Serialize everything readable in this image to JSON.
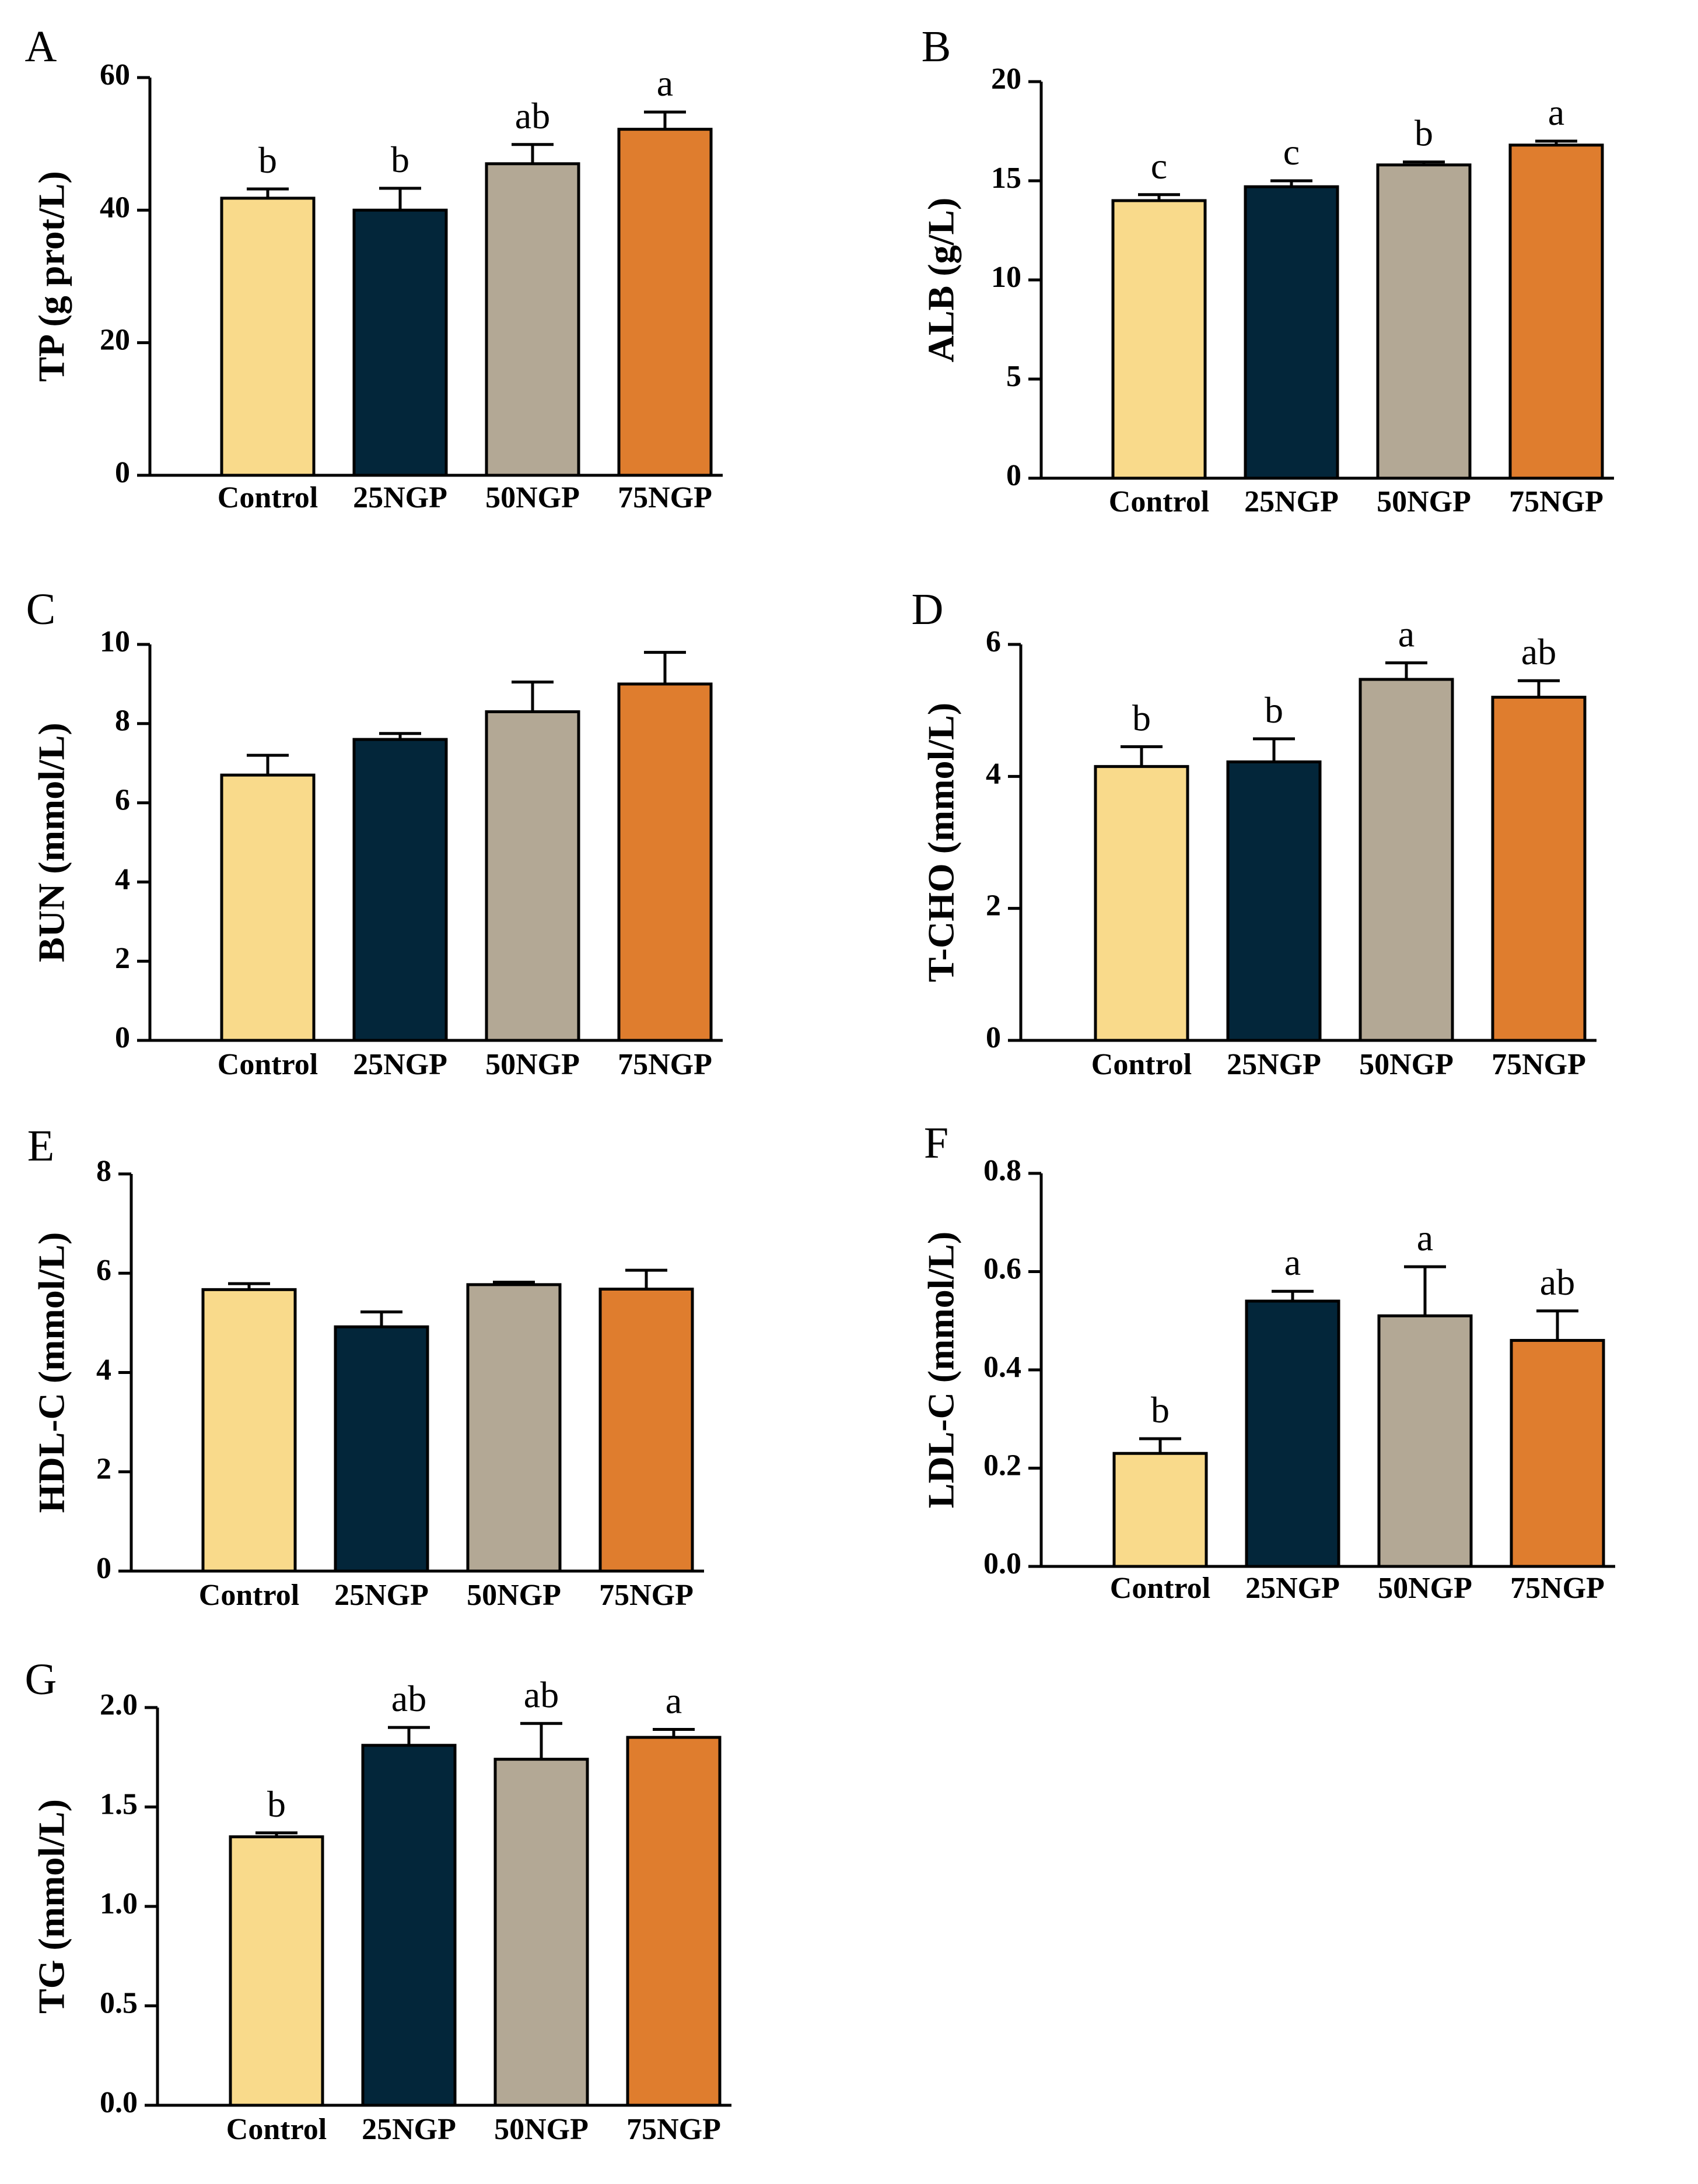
{
  "colors": {
    "Control": "#f9da8b",
    "25NGP": "#03263a",
    "50NGP": "#b3a895",
    "75NGP": "#df7d2e",
    "axis": "#000000"
  },
  "chart_data": [
    {
      "type": "bar",
      "panel": "A",
      "categories": [
        "Control",
        "25NGP",
        "50NGP",
        "75NGP"
      ],
      "values": [
        41.8,
        40.0,
        47.0,
        52.2
      ],
      "errors": [
        1.4,
        3.3,
        2.9,
        2.6
      ],
      "significance": [
        "b",
        "b",
        "ab",
        "a"
      ],
      "ylabel": "TP (g prot/L)",
      "ylim": [
        0,
        60
      ],
      "yticks": [
        0,
        20,
        40,
        60
      ],
      "ytick_labels": [
        "0",
        "20",
        "40",
        "60"
      ]
    },
    {
      "type": "bar",
      "panel": "B",
      "categories": [
        "Control",
        "25NGP",
        "50NGP",
        "75NGP"
      ],
      "values": [
        14.0,
        14.7,
        15.8,
        16.8
      ],
      "errors": [
        0.3,
        0.3,
        0.15,
        0.2
      ],
      "significance": [
        "c",
        "c",
        "b",
        "a"
      ],
      "ylabel": "ALB (g/L)",
      "ylim": [
        0,
        20
      ],
      "yticks": [
        0,
        5,
        10,
        15,
        20
      ],
      "ytick_labels": [
        "0",
        "5",
        "10",
        "15",
        "20"
      ]
    },
    {
      "type": "bar",
      "panel": "C",
      "categories": [
        "Control",
        "25NGP",
        "50NGP",
        "75NGP"
      ],
      "values": [
        6.7,
        7.6,
        8.3,
        9.0
      ],
      "errors": [
        0.5,
        0.15,
        0.75,
        0.8
      ],
      "significance": [
        "",
        "",
        "",
        ""
      ],
      "ylabel": "BUN (mmol/L)",
      "ylim": [
        0,
        10
      ],
      "yticks": [
        0,
        2,
        4,
        6,
        8,
        10
      ],
      "ytick_labels": [
        "0",
        "2",
        "4",
        "6",
        "8",
        "10"
      ]
    },
    {
      "type": "bar",
      "panel": "D",
      "categories": [
        "Control",
        "25NGP",
        "50NGP",
        "75NGP"
      ],
      "values": [
        4.15,
        4.22,
        5.47,
        5.2
      ],
      "errors": [
        0.3,
        0.35,
        0.25,
        0.25
      ],
      "significance": [
        "b",
        "b",
        "a",
        "ab"
      ],
      "ylabel": "T-CHO (mmol/L)",
      "ylim": [
        0,
        6
      ],
      "yticks": [
        0,
        2,
        4,
        6
      ],
      "ytick_labels": [
        "0",
        "2",
        "4",
        "6"
      ]
    },
    {
      "type": "bar",
      "panel": "E",
      "categories": [
        "Control",
        "25NGP",
        "50NGP",
        "75NGP"
      ],
      "values": [
        5.67,
        4.92,
        5.77,
        5.68
      ],
      "errors": [
        0.12,
        0.3,
        0.05,
        0.38
      ],
      "significance": [
        "",
        "",
        "",
        ""
      ],
      "ylabel": "HDL-C (mmol/L)",
      "ylim": [
        0,
        8
      ],
      "yticks": [
        0,
        2,
        4,
        6,
        8
      ],
      "ytick_labels": [
        "0",
        "2",
        "4",
        "6",
        "8"
      ]
    },
    {
      "type": "bar",
      "panel": "F",
      "categories": [
        "Control",
        "25NGP",
        "50NGP",
        "75NGP"
      ],
      "values": [
        0.23,
        0.54,
        0.51,
        0.46
      ],
      "errors": [
        0.03,
        0.02,
        0.1,
        0.06
      ],
      "significance": [
        "b",
        "a",
        "a",
        "ab"
      ],
      "ylabel": "LDL-C (mmol/L)",
      "ylim": [
        0,
        0.8
      ],
      "yticks": [
        0,
        0.2,
        0.4,
        0.6,
        0.8
      ],
      "ytick_labels": [
        "0.0",
        "0.2",
        "0.4",
        "0.6",
        "0.8"
      ]
    },
    {
      "type": "bar",
      "panel": "G",
      "categories": [
        "Control",
        "25NGP",
        "50NGP",
        "75NGP"
      ],
      "values": [
        1.35,
        1.81,
        1.74,
        1.85
      ],
      "errors": [
        0.02,
        0.09,
        0.18,
        0.04
      ],
      "significance": [
        "b",
        "ab",
        "ab",
        "a"
      ],
      "ylabel": "TG (mmol/L)",
      "ylim": [
        0,
        2.0
      ],
      "yticks": [
        0,
        0.5,
        1.0,
        1.5,
        2.0
      ],
      "ytick_labels": [
        "0.0",
        "0.5",
        "1.0",
        "1.5",
        "2.0"
      ]
    }
  ]
}
